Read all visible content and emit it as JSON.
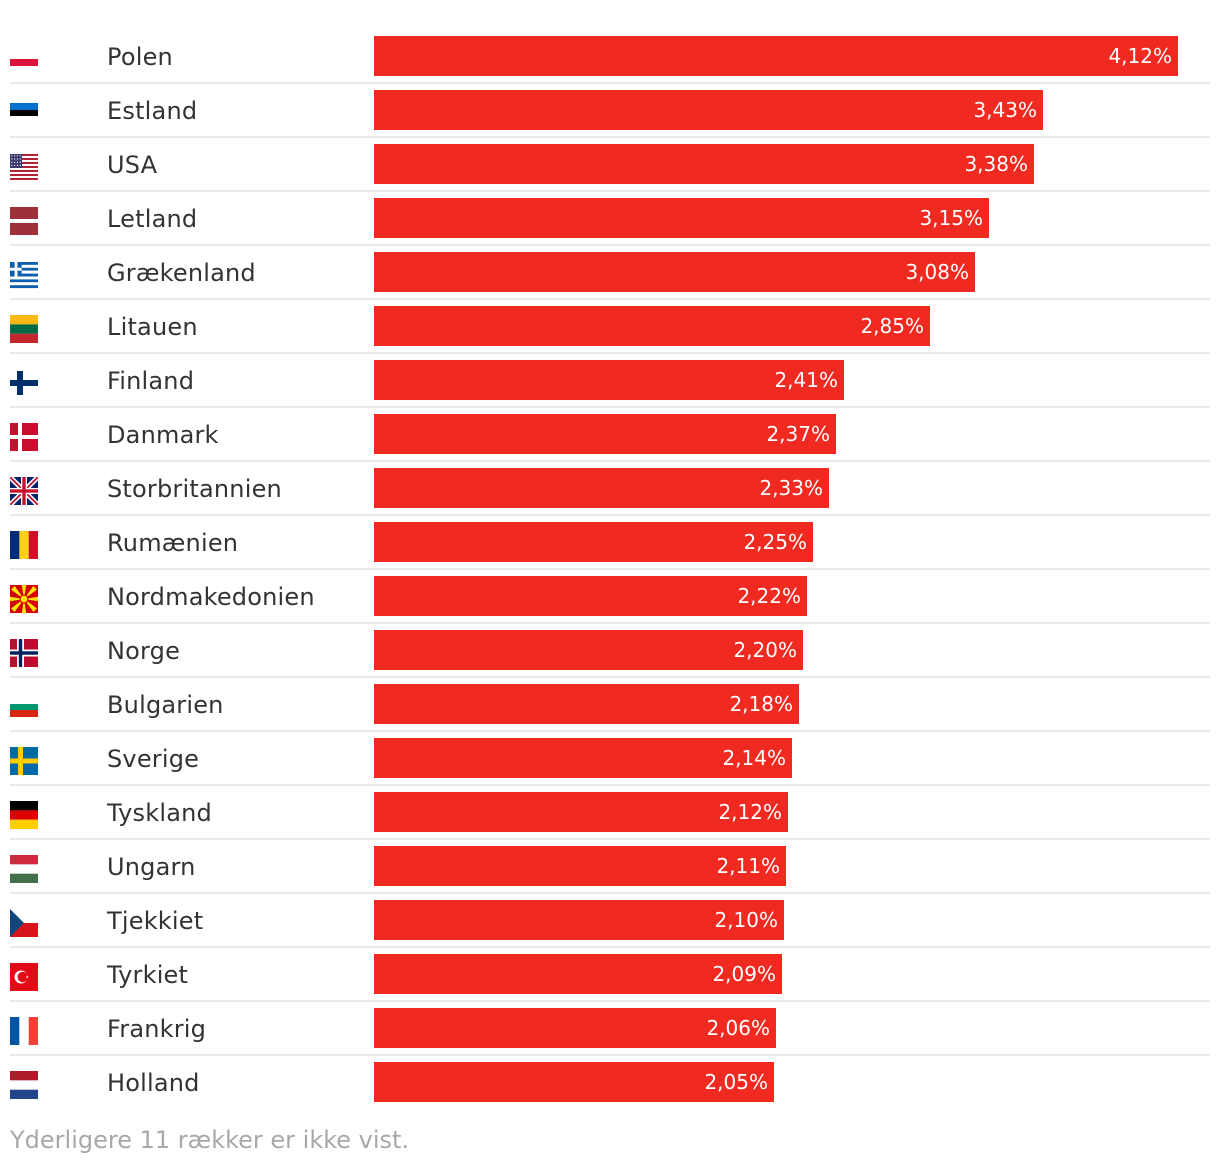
{
  "chart_data": {
    "type": "bar",
    "orientation": "horizontal",
    "bar_color": "#f02a21",
    "rows": [
      {
        "country": "Polen",
        "value": 4.12,
        "label": "4,12%",
        "flag": "flag-poland"
      },
      {
        "country": "Estland",
        "value": 3.43,
        "label": "3,43%",
        "flag": "flag-estonia"
      },
      {
        "country": "USA",
        "value": 3.38,
        "label": "3,38%",
        "flag": "flag-usa"
      },
      {
        "country": "Letland",
        "value": 3.15,
        "label": "3,15%",
        "flag": "flag-latvia"
      },
      {
        "country": "Grækenland",
        "value": 3.08,
        "label": "3,08%",
        "flag": "flag-greece"
      },
      {
        "country": "Litauen",
        "value": 2.85,
        "label": "2,85%",
        "flag": "flag-lithuania"
      },
      {
        "country": "Finland",
        "value": 2.41,
        "label": "2,41%",
        "flag": "flag-finland"
      },
      {
        "country": "Danmark",
        "value": 2.37,
        "label": "2,37%",
        "flag": "flag-denmark"
      },
      {
        "country": "Storbritannien",
        "value": 2.33,
        "label": "2,33%",
        "flag": "flag-uk"
      },
      {
        "country": "Rumænien",
        "value": 2.25,
        "label": "2,25%",
        "flag": "flag-romania"
      },
      {
        "country": "Nordmakedonien",
        "value": 2.22,
        "label": "2,22%",
        "flag": "flag-north-macedonia"
      },
      {
        "country": "Norge",
        "value": 2.2,
        "label": "2,20%",
        "flag": "flag-norway"
      },
      {
        "country": "Bulgarien",
        "value": 2.18,
        "label": "2,18%",
        "flag": "flag-bulgaria"
      },
      {
        "country": "Sverige",
        "value": 2.14,
        "label": "2,14%",
        "flag": "flag-sweden"
      },
      {
        "country": "Tyskland",
        "value": 2.12,
        "label": "2,12%",
        "flag": "flag-germany"
      },
      {
        "country": "Ungarn",
        "value": 2.11,
        "label": "2,11%",
        "flag": "flag-hungary"
      },
      {
        "country": "Tjekkiet",
        "value": 2.1,
        "label": "2,10%",
        "flag": "flag-czechia"
      },
      {
        "country": "Tyrkiet",
        "value": 2.09,
        "label": "2,09%",
        "flag": "flag-turkey"
      },
      {
        "country": "Frankrig",
        "value": 2.06,
        "label": "2,06%",
        "flag": "flag-france"
      },
      {
        "country": "Holland",
        "value": 2.05,
        "label": "2,05%",
        "flag": "flag-netherlands"
      }
    ]
  },
  "footnote": "Yderligere 11 rækker er ikke vist."
}
